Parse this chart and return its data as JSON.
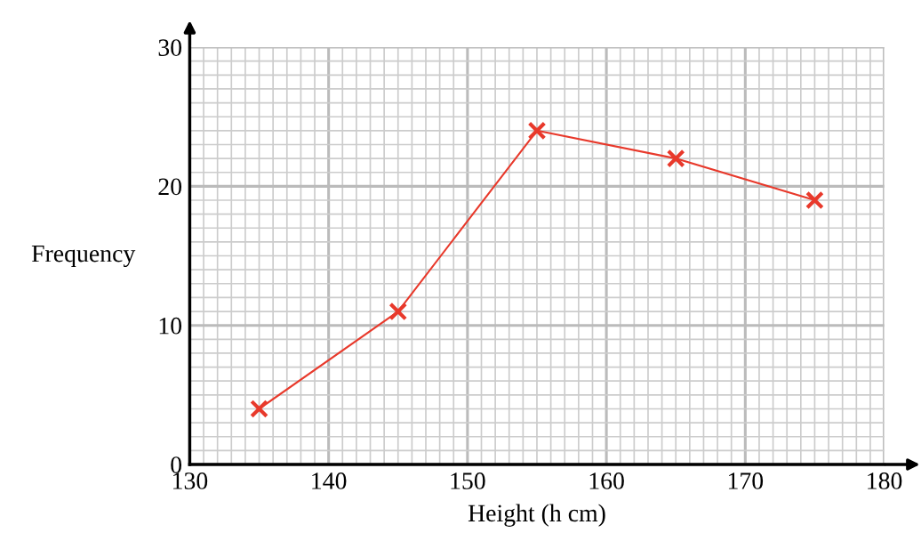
{
  "chart_data": {
    "type": "line",
    "xlabel": "Height (h cm)",
    "ylabel": "Frequency",
    "x": [
      135,
      145,
      155,
      165,
      175
    ],
    "series": [
      {
        "color": "#e8392b",
        "values": [
          4,
          11,
          24,
          22,
          19
        ]
      }
    ],
    "xlim": [
      130,
      180
    ],
    "xticks": [
      130,
      140,
      150,
      160,
      170,
      180
    ],
    "ylim": [
      0,
      30
    ],
    "yticks": [
      0,
      10,
      20,
      30
    ],
    "grid": true,
    "marker": "cross",
    "line_style": "solid"
  }
}
